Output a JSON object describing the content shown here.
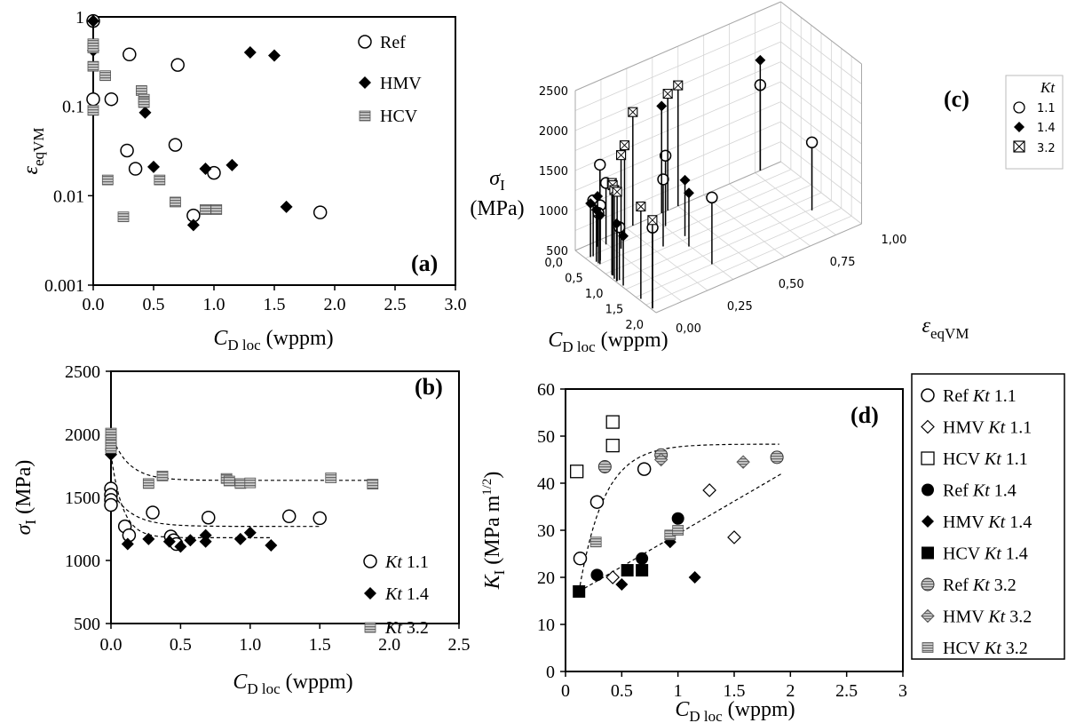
{
  "colors": {
    "black": "#000000",
    "gray": "#9a9a9a",
    "lightgray": "#c8c8c8",
    "white": "#ffffff"
  },
  "chart_data": [
    {
      "id": "a",
      "type": "scatter",
      "panel_label": "(a)",
      "xlabel": "C_D loc (wppm)",
      "ylabel": "ε_eqVM",
      "xlim": [
        0,
        3.0
      ],
      "ylim": [
        0.001,
        1
      ],
      "yscale": "log",
      "x_ticks": [
        "0.0",
        "0.5",
        "1.0",
        "1.5",
        "2.0",
        "2.5",
        "3.0"
      ],
      "y_ticks": [
        "0.001",
        "0.01",
        "0.1",
        "1"
      ],
      "grid": false,
      "legend_position": "top-right",
      "series": [
        {
          "name": "Ref",
          "marker": "open-circle",
          "points": [
            [
              0.0,
              0.9
            ],
            [
              0.0,
              0.12
            ],
            [
              0.15,
              0.12
            ],
            [
              0.3,
              0.38
            ],
            [
              0.7,
              0.29
            ],
            [
              0.28,
              0.032
            ],
            [
              0.68,
              0.037
            ],
            [
              0.35,
              0.02
            ],
            [
              1.0,
              0.018
            ],
            [
              0.83,
              0.006
            ],
            [
              1.88,
              0.0065
            ]
          ]
        },
        {
          "name": "HMV",
          "marker": "filled-diamond",
          "points": [
            [
              0.0,
              0.9
            ],
            [
              0.0,
              0.42
            ],
            [
              0.43,
              0.085
            ],
            [
              0.5,
              0.021
            ],
            [
              0.93,
              0.02
            ],
            [
              1.15,
              0.022
            ],
            [
              1.3,
              0.4
            ],
            [
              1.5,
              0.37
            ],
            [
              0.83,
              0.0047
            ],
            [
              1.6,
              0.0075
            ]
          ]
        },
        {
          "name": "HCV",
          "marker": "striped-square",
          "points": [
            [
              0.0,
              0.5
            ],
            [
              0.0,
              0.45
            ],
            [
              0.0,
              0.28
            ],
            [
              0.0,
              0.09
            ],
            [
              0.1,
              0.22
            ],
            [
              0.4,
              0.15
            ],
            [
              0.42,
              0.12
            ],
            [
              0.42,
              0.11
            ],
            [
              0.12,
              0.015
            ],
            [
              0.55,
              0.015
            ],
            [
              0.68,
              0.0085
            ],
            [
              0.93,
              0.007
            ],
            [
              1.02,
              0.007
            ],
            [
              0.25,
              0.0058
            ]
          ]
        }
      ]
    },
    {
      "id": "b",
      "type": "scatter",
      "panel_label": "(b)",
      "xlabel": "C_D loc (wppm)",
      "ylabel": "σ_I (MPa)",
      "xlim": [
        0,
        2.5
      ],
      "ylim": [
        500,
        2500
      ],
      "x_ticks": [
        "0.0",
        "0.5",
        "1.0",
        "1.5",
        "2.0",
        "2.5"
      ],
      "y_ticks": [
        "500",
        "1000",
        "1500",
        "2000",
        "2500"
      ],
      "grid": false,
      "legend_position": "bottom-right",
      "series": [
        {
          "name": "Kt 1.1",
          "marker": "open-circle",
          "points": [
            [
              0.0,
              1570
            ],
            [
              0.0,
              1520
            ],
            [
              0.0,
              1480
            ],
            [
              0.0,
              1440
            ],
            [
              0.1,
              1270
            ],
            [
              0.13,
              1200
            ],
            [
              0.3,
              1380
            ],
            [
              0.43,
              1190
            ],
            [
              0.45,
              1160
            ],
            [
              0.47,
              1130
            ],
            [
              0.7,
              1340
            ],
            [
              1.28,
              1350
            ],
            [
              1.5,
              1335
            ]
          ]
        },
        {
          "name": "Kt 1.4",
          "marker": "filled-diamond",
          "points": [
            [
              0.0,
              1880
            ],
            [
              0.0,
              1840
            ],
            [
              0.12,
              1130
            ],
            [
              0.27,
              1170
            ],
            [
              0.42,
              1150
            ],
            [
              0.5,
              1110
            ],
            [
              0.57,
              1160
            ],
            [
              0.68,
              1150
            ],
            [
              0.68,
              1200
            ],
            [
              0.93,
              1170
            ],
            [
              1.0,
              1220
            ],
            [
              1.15,
              1120
            ]
          ]
        },
        {
          "name": "Kt 3.2",
          "marker": "striped-square",
          "points": [
            [
              0.0,
              2010
            ],
            [
              0.0,
              1960
            ],
            [
              0.0,
              1920
            ],
            [
              0.0,
              1890
            ],
            [
              0.27,
              1610
            ],
            [
              0.37,
              1670
            ],
            [
              0.83,
              1650
            ],
            [
              0.85,
              1630
            ],
            [
              0.93,
              1610
            ],
            [
              1.0,
              1615
            ],
            [
              1.58,
              1655
            ],
            [
              1.88,
              1605
            ]
          ]
        }
      ],
      "fit_curves": [
        {
          "for": "Kt 3.2",
          "y_inf": 1635,
          "y0": 2000,
          "k": 8,
          "x_range": [
            0,
            1.88
          ]
        },
        {
          "for": "Kt 1.1",
          "y_inf": 1270,
          "y0": 1560,
          "k": 7,
          "x_range": [
            0,
            1.5
          ]
        },
        {
          "for": "Kt 1.4",
          "y_inf": 1180,
          "y0": 1840,
          "k": 12,
          "x_range": [
            0,
            1.15
          ]
        }
      ]
    },
    {
      "id": "c",
      "type": "scatter",
      "panel_label": "(c)",
      "xlabel": "C_D loc (wppm)",
      "ylabel": "ε_eqVM",
      "zlabel": "σ_I (MPa)",
      "xlim": [
        0,
        2.0
      ],
      "ylim": [
        0,
        1
      ],
      "zlim": [
        500,
        2500
      ],
      "x_ticks": [
        "0,0",
        "0,5",
        "1,0",
        "1,5",
        "2,0"
      ],
      "y_ticks": [
        "0,00",
        "0,25",
        "0,50",
        "0,75",
        "1,00"
      ],
      "z_ticks": [
        "500",
        "1000",
        "1500",
        "2000",
        "2500"
      ],
      "grid": true,
      "legend_title": "Kt",
      "legend_position": "right",
      "series": [
        {
          "name": "1.1",
          "marker": "open-circle",
          "points": [
            [
              0.0,
              0.9,
              1570
            ],
            [
              0.0,
              0.12,
              1440
            ],
            [
              0.15,
              0.12,
              1270
            ],
            [
              0.3,
              0.38,
              1380
            ],
            [
              0.7,
              0.29,
              1340
            ],
            [
              0.28,
              0.032,
              1200
            ],
            [
              0.43,
              0.037,
              1190
            ],
            [
              0.47,
              0.02,
              1130
            ],
            [
              1.0,
              0.018,
              1160
            ],
            [
              1.28,
              0.9,
              1350
            ],
            [
              1.5,
              0.37,
              1335
            ],
            [
              1.88,
              0.0065,
              1510
            ]
          ]
        },
        {
          "name": "1.4",
          "marker": "filled-diamond",
          "points": [
            [
              0.0,
              0.9,
              1880
            ],
            [
              0.0,
              0.42,
              1840
            ],
            [
              0.12,
              0.085,
              1130
            ],
            [
              0.27,
              0.021,
              1170
            ],
            [
              0.42,
              0.02,
              1150
            ],
            [
              0.5,
              0.022,
              1110
            ],
            [
              0.68,
              0.4,
              1200
            ],
            [
              0.93,
              0.37,
              1170
            ],
            [
              1.0,
              0.0047,
              1220
            ],
            [
              1.15,
              0.0075,
              1120
            ]
          ]
        },
        {
          "name": "3.2",
          "marker": "crossed-square",
          "points": [
            [
              0.0,
              0.5,
              2010
            ],
            [
              0.0,
              0.45,
              1960
            ],
            [
              0.0,
              0.28,
              1920
            ],
            [
              0.1,
              0.22,
              1610
            ],
            [
              0.37,
              0.15,
              1670
            ],
            [
              0.83,
              0.015,
              1650
            ],
            [
              0.85,
              0.015,
              1630
            ],
            [
              0.93,
              0.007,
              1610
            ],
            [
              1.0,
              0.007,
              1615
            ],
            [
              1.58,
              0.0085,
              1655
            ],
            [
              1.88,
              0.0058,
              1605
            ]
          ]
        }
      ]
    },
    {
      "id": "d",
      "type": "scatter",
      "panel_label": "(d)",
      "xlabel": "C_D loc (wppm)",
      "ylabel": "K_I (MPa m^1/2)",
      "xlim": [
        0,
        3
      ],
      "ylim": [
        0,
        60
      ],
      "x_ticks": [
        "0",
        "0.5",
        "1",
        "1.5",
        "2",
        "2.5",
        "3"
      ],
      "y_ticks": [
        "0",
        "10",
        "20",
        "30",
        "40",
        "50",
        "60"
      ],
      "grid": false,
      "legend_position": "outside-right",
      "series": [
        {
          "name": "Ref Kt 1.1",
          "marker": "open-circle",
          "points": [
            [
              0.13,
              24
            ],
            [
              0.28,
              36
            ],
            [
              0.7,
              43
            ]
          ]
        },
        {
          "name": "HMV Kt 1.1",
          "marker": "open-diamond",
          "points": [
            [
              0.42,
              20
            ],
            [
              1.28,
              38.5
            ],
            [
              1.5,
              28.5
            ]
          ]
        },
        {
          "name": "HCV Kt 1.1",
          "marker": "open-square",
          "points": [
            [
              0.1,
              42.5
            ],
            [
              0.42,
              48
            ],
            [
              0.42,
              53
            ]
          ]
        },
        {
          "name": "Ref Kt 1.4",
          "marker": "filled-circle",
          "points": [
            [
              0.28,
              20.5
            ],
            [
              0.68,
              24
            ],
            [
              1.0,
              32.5
            ]
          ]
        },
        {
          "name": "HMV Kt 1.4",
          "marker": "filled-diamond",
          "points": [
            [
              0.5,
              18.5
            ],
            [
              0.93,
              27.5
            ],
            [
              1.15,
              20
            ]
          ]
        },
        {
          "name": "HCV Kt 1.4",
          "marker": "filled-square",
          "points": [
            [
              0.12,
              17
            ],
            [
              0.55,
              21.5
            ],
            [
              0.68,
              21.5
            ]
          ]
        },
        {
          "name": "Ref Kt 3.2",
          "marker": "striped-circle",
          "points": [
            [
              0.35,
              43.5
            ],
            [
              0.85,
              46
            ],
            [
              1.88,
              45.5
            ]
          ]
        },
        {
          "name": "HMV Kt 3.2",
          "marker": "striped-diamond",
          "points": [
            [
              0.85,
              45
            ],
            [
              1.58,
              44.5
            ]
          ]
        },
        {
          "name": "HCV Kt 3.2",
          "marker": "striped-square",
          "points": [
            [
              0.27,
              27.5
            ],
            [
              0.93,
              29
            ],
            [
              1.0,
              30
            ]
          ]
        }
      ],
      "fit_curves": [
        {
          "kind": "saturation",
          "y_inf": 48.3,
          "x0": 0.12,
          "y0": 17,
          "k": 4.5,
          "x_range": [
            0.12,
            1.9
          ]
        },
        {
          "kind": "linear",
          "x1": 0.12,
          "y1": 17,
          "x2": 1.92,
          "y2": 42,
          "x_range": [
            0.12,
            1.92
          ]
        }
      ]
    }
  ]
}
